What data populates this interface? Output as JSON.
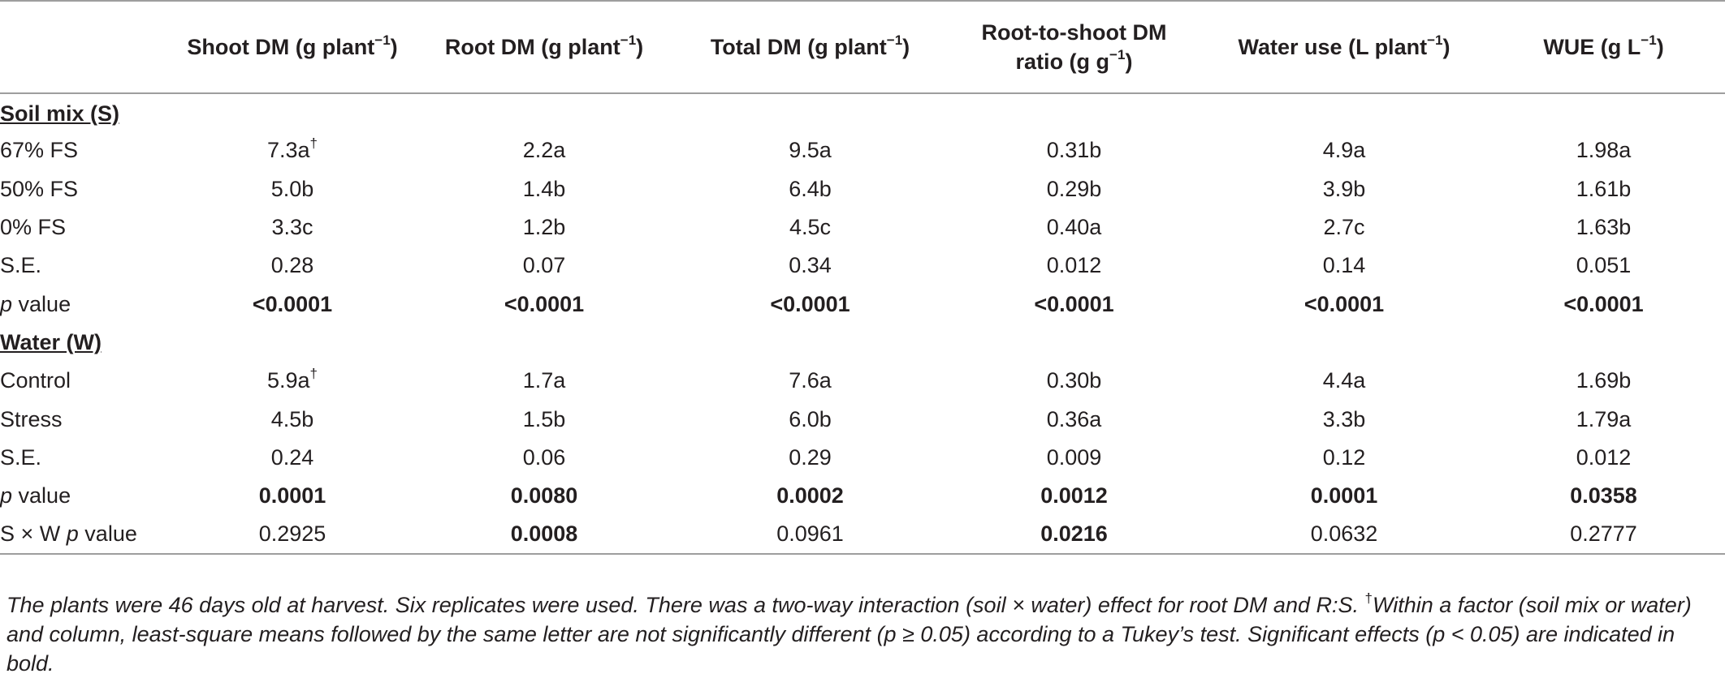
{
  "columns": [
    {
      "name": "Shoot DM (g plant",
      "unit_exp": "−1",
      "tail": ")"
    },
    {
      "name": "Root DM (g plant",
      "unit_exp": "−1",
      "tail": ")"
    },
    {
      "name": "Total DM (g plant",
      "unit_exp": "−1",
      "tail": ")"
    },
    {
      "name": "Root-to-shoot DM ratio (g g",
      "unit_exp": "−1",
      "tail": ")"
    },
    {
      "name": "Water use (L plant",
      "unit_exp": "−1",
      "tail": ")"
    },
    {
      "name": "WUE (g L",
      "unit_exp": "−1",
      "tail": ")"
    }
  ],
  "dagger": "†",
  "sections": {
    "soil": {
      "title": "Soil mix (S)",
      "rows": {
        "r0": {
          "label": "67% FS",
          "v": [
            "7.3a",
            "2.2a",
            "9.5a",
            "0.31b",
            "4.9a",
            "1.98a"
          ]
        },
        "r1": {
          "label": "50% FS",
          "v": [
            "5.0b",
            "1.4b",
            "6.4b",
            "0.29b",
            "3.9b",
            "1.61b"
          ]
        },
        "r2": {
          "label": "0% FS",
          "v": [
            "3.3c",
            "1.2b",
            "4.5c",
            "0.40a",
            "2.7c",
            "1.63b"
          ]
        },
        "r3": {
          "label": "S.E.",
          "v": [
            "0.28",
            "0.07",
            "0.34",
            "0.012",
            "0.14",
            "0.051"
          ]
        },
        "r4": {
          "label_it": "p",
          "label_rest": " value",
          "v": [
            "<0.0001",
            "<0.0001",
            "<0.0001",
            "<0.0001",
            "<0.0001",
            "<0.0001"
          ]
        }
      }
    },
    "water": {
      "title": "Water (W)",
      "rows": {
        "r0": {
          "label": "Control",
          "v": [
            "5.9a",
            "1.7a",
            "7.6a",
            "0.30b",
            "4.4a",
            "1.69b"
          ]
        },
        "r1": {
          "label": "Stress",
          "v": [
            "4.5b",
            "1.5b",
            "6.0b",
            "0.36a",
            "3.3b",
            "1.79a"
          ]
        },
        "r2": {
          "label": "S.E.",
          "v": [
            "0.24",
            "0.06",
            "0.29",
            "0.009",
            "0.12",
            "0.012"
          ]
        },
        "r3": {
          "label_it": "p",
          "label_rest": " value",
          "v": [
            "0.0001",
            "0.0080",
            "0.0002",
            "0.0012",
            "0.0001",
            "0.0358"
          ]
        },
        "r4": {
          "label_pre": "S × W ",
          "label_it": "p",
          "label_rest": " value",
          "v": [
            "0.2925",
            "0.0008",
            "0.0961",
            "0.0216",
            "0.0632",
            "0.2777"
          ]
        }
      }
    }
  },
  "note": {
    "part1": "The plants were 46 days old at harvest. Six replicates were used. There was a two-way interaction (soil × water) effect for root DM and R:S. ",
    "part2": "Within a factor (soil mix or water) and column, least-square means followed by the same letter are not significantly different (p ≥ 0.05) according to a Tukey’s test. Significant effects (p < 0.05) are indicated in bold."
  }
}
